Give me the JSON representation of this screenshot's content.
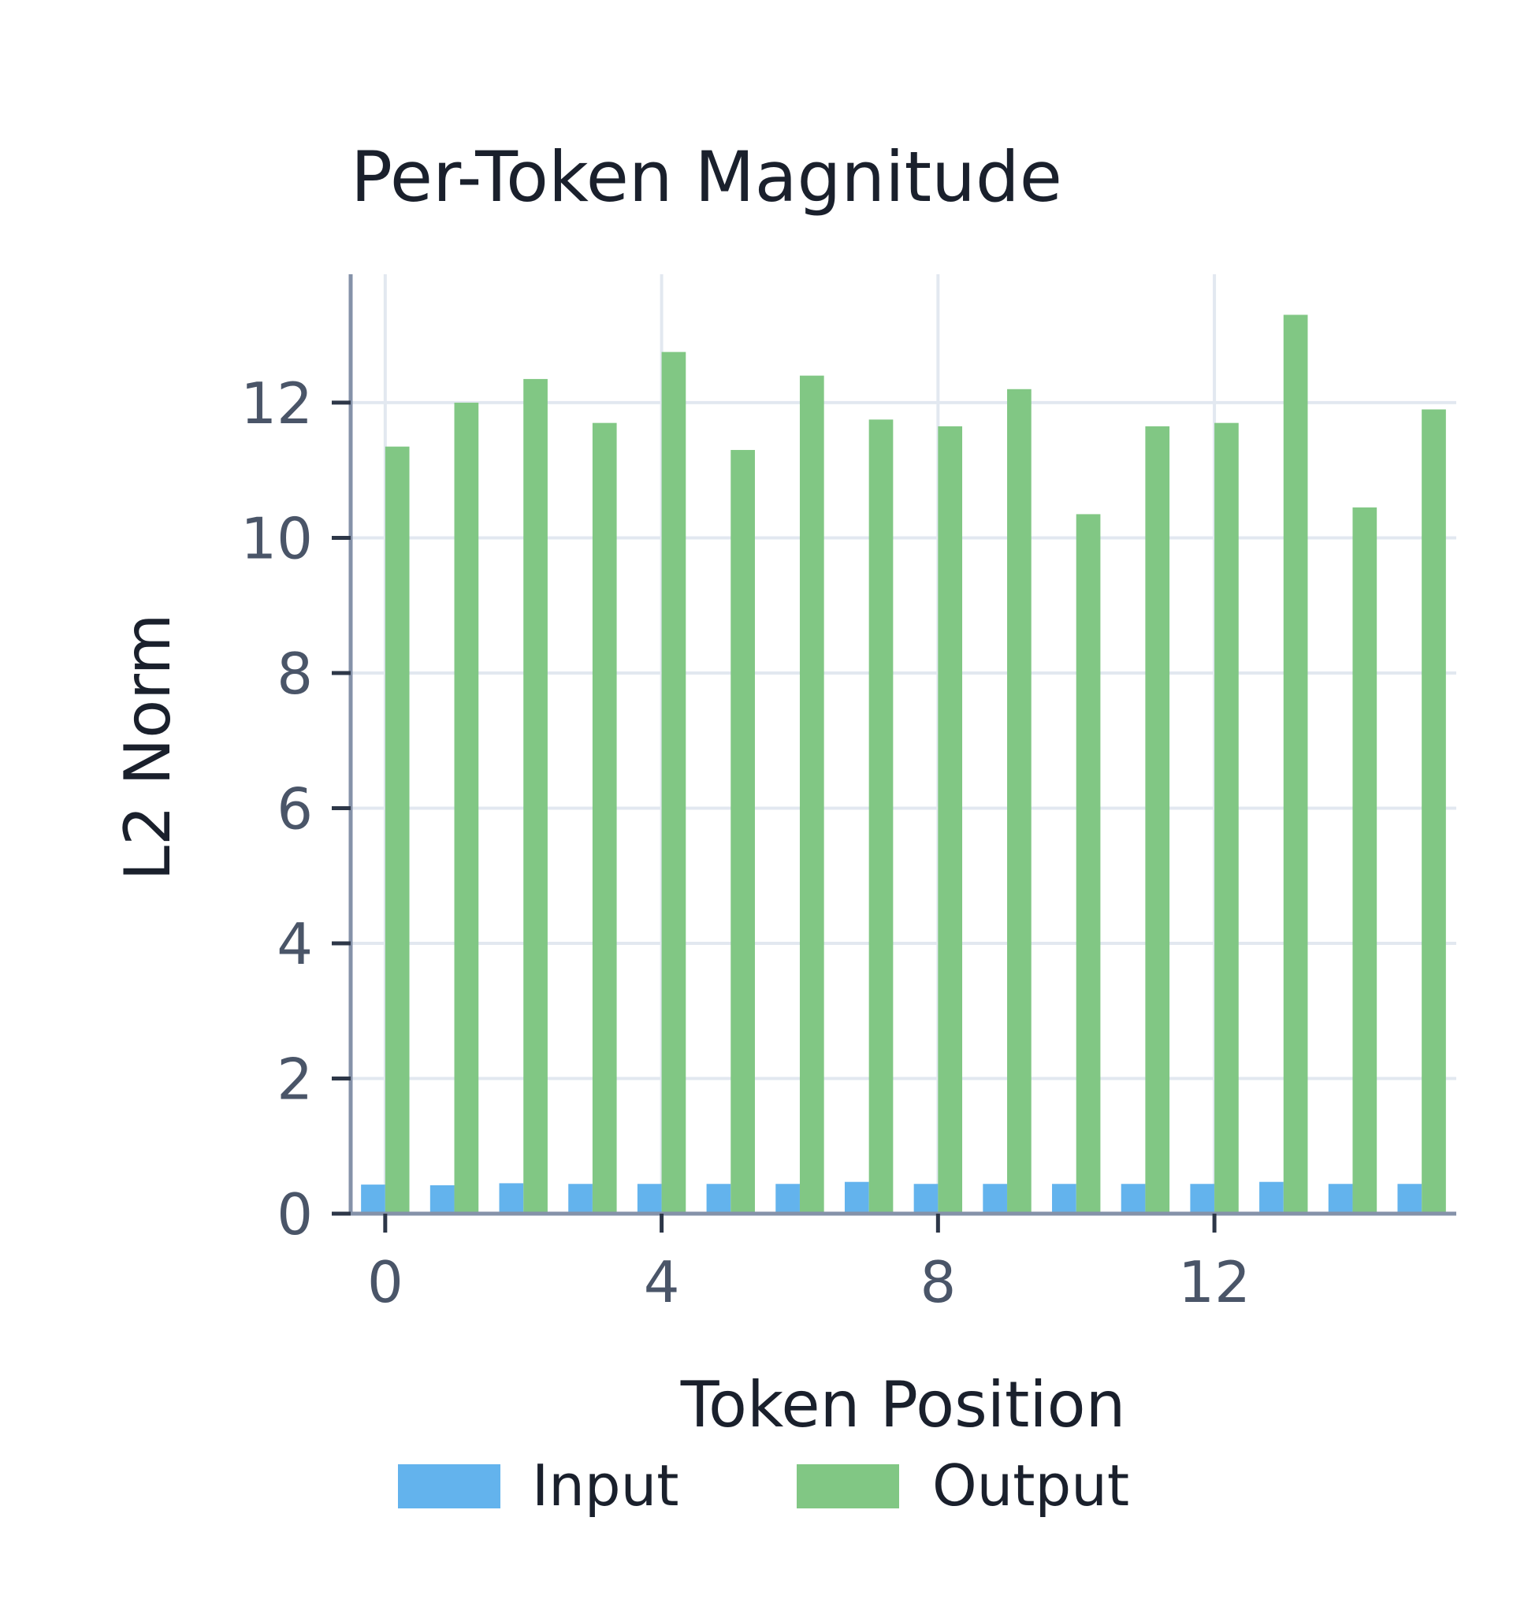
{
  "chart_data": {
    "type": "bar",
    "title": "Per-Token Magnitude",
    "xlabel": "Token Position",
    "ylabel": "L2 Norm",
    "x": [
      0,
      1,
      2,
      3,
      4,
      5,
      6,
      7,
      8,
      9,
      10,
      11,
      12,
      13,
      14,
      15
    ],
    "x_ticks": [
      0,
      4,
      8,
      12
    ],
    "y_ticks": [
      0,
      2,
      4,
      6,
      8,
      10,
      12
    ],
    "xlim": [
      -0.5,
      15.5
    ],
    "ylim": [
      0,
      13.9
    ],
    "grid": true,
    "legend_position": "bottom",
    "series": [
      {
        "name": "Input",
        "color": "#63b3ed",
        "values": [
          0.43,
          0.42,
          0.45,
          0.44,
          0.44,
          0.44,
          0.44,
          0.47,
          0.44,
          0.44,
          0.44,
          0.44,
          0.44,
          0.47,
          0.44,
          0.44
        ]
      },
      {
        "name": "Output",
        "color": "#81c784",
        "values": [
          11.35,
          12.0,
          12.35,
          11.7,
          12.75,
          11.3,
          12.4,
          11.75,
          11.65,
          12.2,
          10.35,
          11.65,
          11.7,
          13.3,
          10.45,
          11.9
        ]
      }
    ]
  }
}
